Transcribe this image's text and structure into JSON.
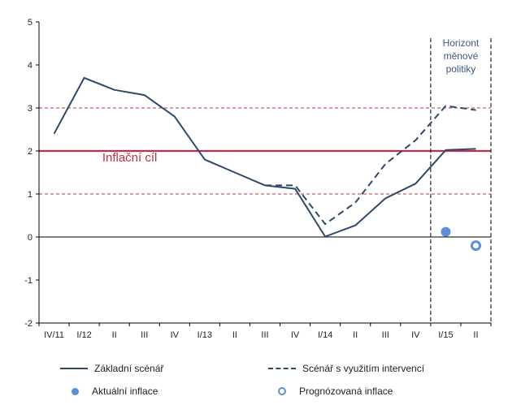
{
  "chart_data": {
    "type": "line",
    "categories": [
      "IV/11",
      "I/12",
      "II",
      "III",
      "IV",
      "I/13",
      "II",
      "III",
      "IV",
      "I/14",
      "II",
      "III",
      "IV",
      "I/15",
      "II"
    ],
    "ylim": [
      -2,
      5
    ],
    "yticks": [
      "-2",
      "-1",
      "0",
      "1",
      "2",
      "3",
      "4",
      "5"
    ],
    "grid": false,
    "series": [
      {
        "name": "Základní scénář",
        "style": "solid",
        "color": "#2e4a6b",
        "values": [
          2.4,
          3.7,
          3.42,
          3.3,
          2.8,
          1.8,
          1.5,
          1.2,
          1.12,
          0.01,
          0.27,
          0.9,
          1.24,
          2.02,
          2.05
        ]
      },
      {
        "name": "Scénář s využitím intervencí",
        "style": "dashed",
        "color": "#2e4a6b",
        "values": [
          null,
          null,
          null,
          null,
          null,
          null,
          null,
          1.2,
          1.2,
          0.3,
          0.8,
          1.7,
          2.25,
          3.05,
          2.95
        ]
      }
    ],
    "points": [
      {
        "name": "Aktuální inflace",
        "style": "filled",
        "color": "#5b8fd6",
        "x": 13.0,
        "y": 0.12
      },
      {
        "name": "Prognózovaná inflace",
        "style": "hollow",
        "color": "#5b8fd6",
        "x": 14.0,
        "y": -0.2
      }
    ],
    "reference_lines": [
      {
        "y": 2,
        "style": "solid",
        "color": "#c0304a",
        "label": "Inflační cíl"
      },
      {
        "y": 3,
        "style": "dashed",
        "color": "#b0384c"
      },
      {
        "y": 1,
        "style": "dashed",
        "color": "#b0384c"
      }
    ],
    "horizon": {
      "from": 12.0,
      "to": 14.0,
      "label": [
        "Horizont",
        "měnové",
        "politiky"
      ]
    },
    "legend_placement": "bottom"
  }
}
